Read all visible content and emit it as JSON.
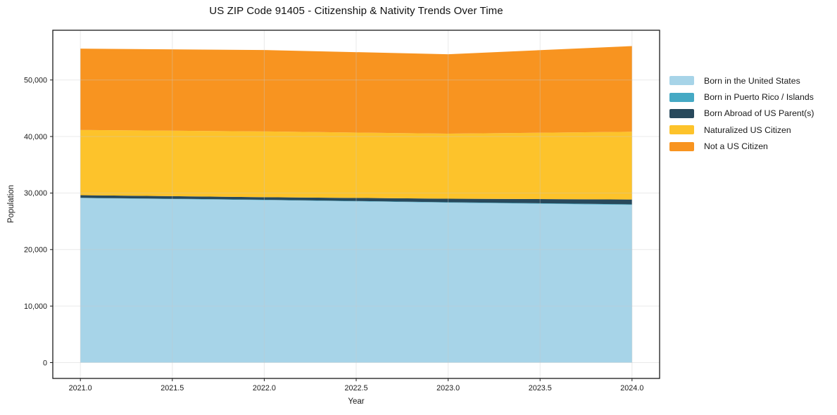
{
  "chart_data": {
    "type": "area",
    "stacked": true,
    "title": "US ZIP Code 91405 - Citizenship & Nativity Trends Over Time",
    "xlabel": "Year",
    "ylabel": "Population",
    "x": [
      2021,
      2022,
      2023,
      2024
    ],
    "series": [
      {
        "name": "Born in the United States",
        "color": "#A7D4E8",
        "values": [
          29100,
          28750,
          28300,
          27900
        ]
      },
      {
        "name": "Born in Puerto Rico / Islands",
        "color": "#45A9C4",
        "values": [
          60,
          60,
          80,
          100
        ]
      },
      {
        "name": "Born Abroad of US Parent(s)",
        "color": "#28495C",
        "values": [
          460,
          450,
          620,
          850
        ]
      },
      {
        "name": "Naturalized US Citizen",
        "color": "#FDC32B",
        "values": [
          11530,
          11640,
          11500,
          12000
        ]
      },
      {
        "name": "Not a US Citizen",
        "color": "#F89420",
        "values": [
          14400,
          14400,
          14050,
          15150
        ]
      }
    ],
    "totals": [
      55550,
      55300,
      54550,
      56000
    ],
    "xlim": [
      2020.85,
      2024.15
    ],
    "ylim": [
      -2800,
      58800
    ],
    "x_ticks": [
      {
        "value": 2021.0,
        "label": "2021.0"
      },
      {
        "value": 2021.5,
        "label": "2021.5"
      },
      {
        "value": 2022.0,
        "label": "2022.0"
      },
      {
        "value": 2022.5,
        "label": "2022.5"
      },
      {
        "value": 2023.0,
        "label": "2023.0"
      },
      {
        "value": 2023.5,
        "label": "2023.5"
      },
      {
        "value": 2024.0,
        "label": "2024.0"
      }
    ],
    "y_ticks": [
      {
        "value": 0,
        "label": "0"
      },
      {
        "value": 10000,
        "label": "10,000"
      },
      {
        "value": 20000,
        "label": "20,000"
      },
      {
        "value": 30000,
        "label": "30,000"
      },
      {
        "value": 40000,
        "label": "40,000"
      },
      {
        "value": 50000,
        "label": "50,000"
      }
    ],
    "grid": true,
    "legend_position": "right"
  },
  "colors": {
    "background": "#ffffff",
    "axis": "#1a1a1a",
    "grid": "#c8c8c8",
    "text": "#1a1a1a"
  }
}
